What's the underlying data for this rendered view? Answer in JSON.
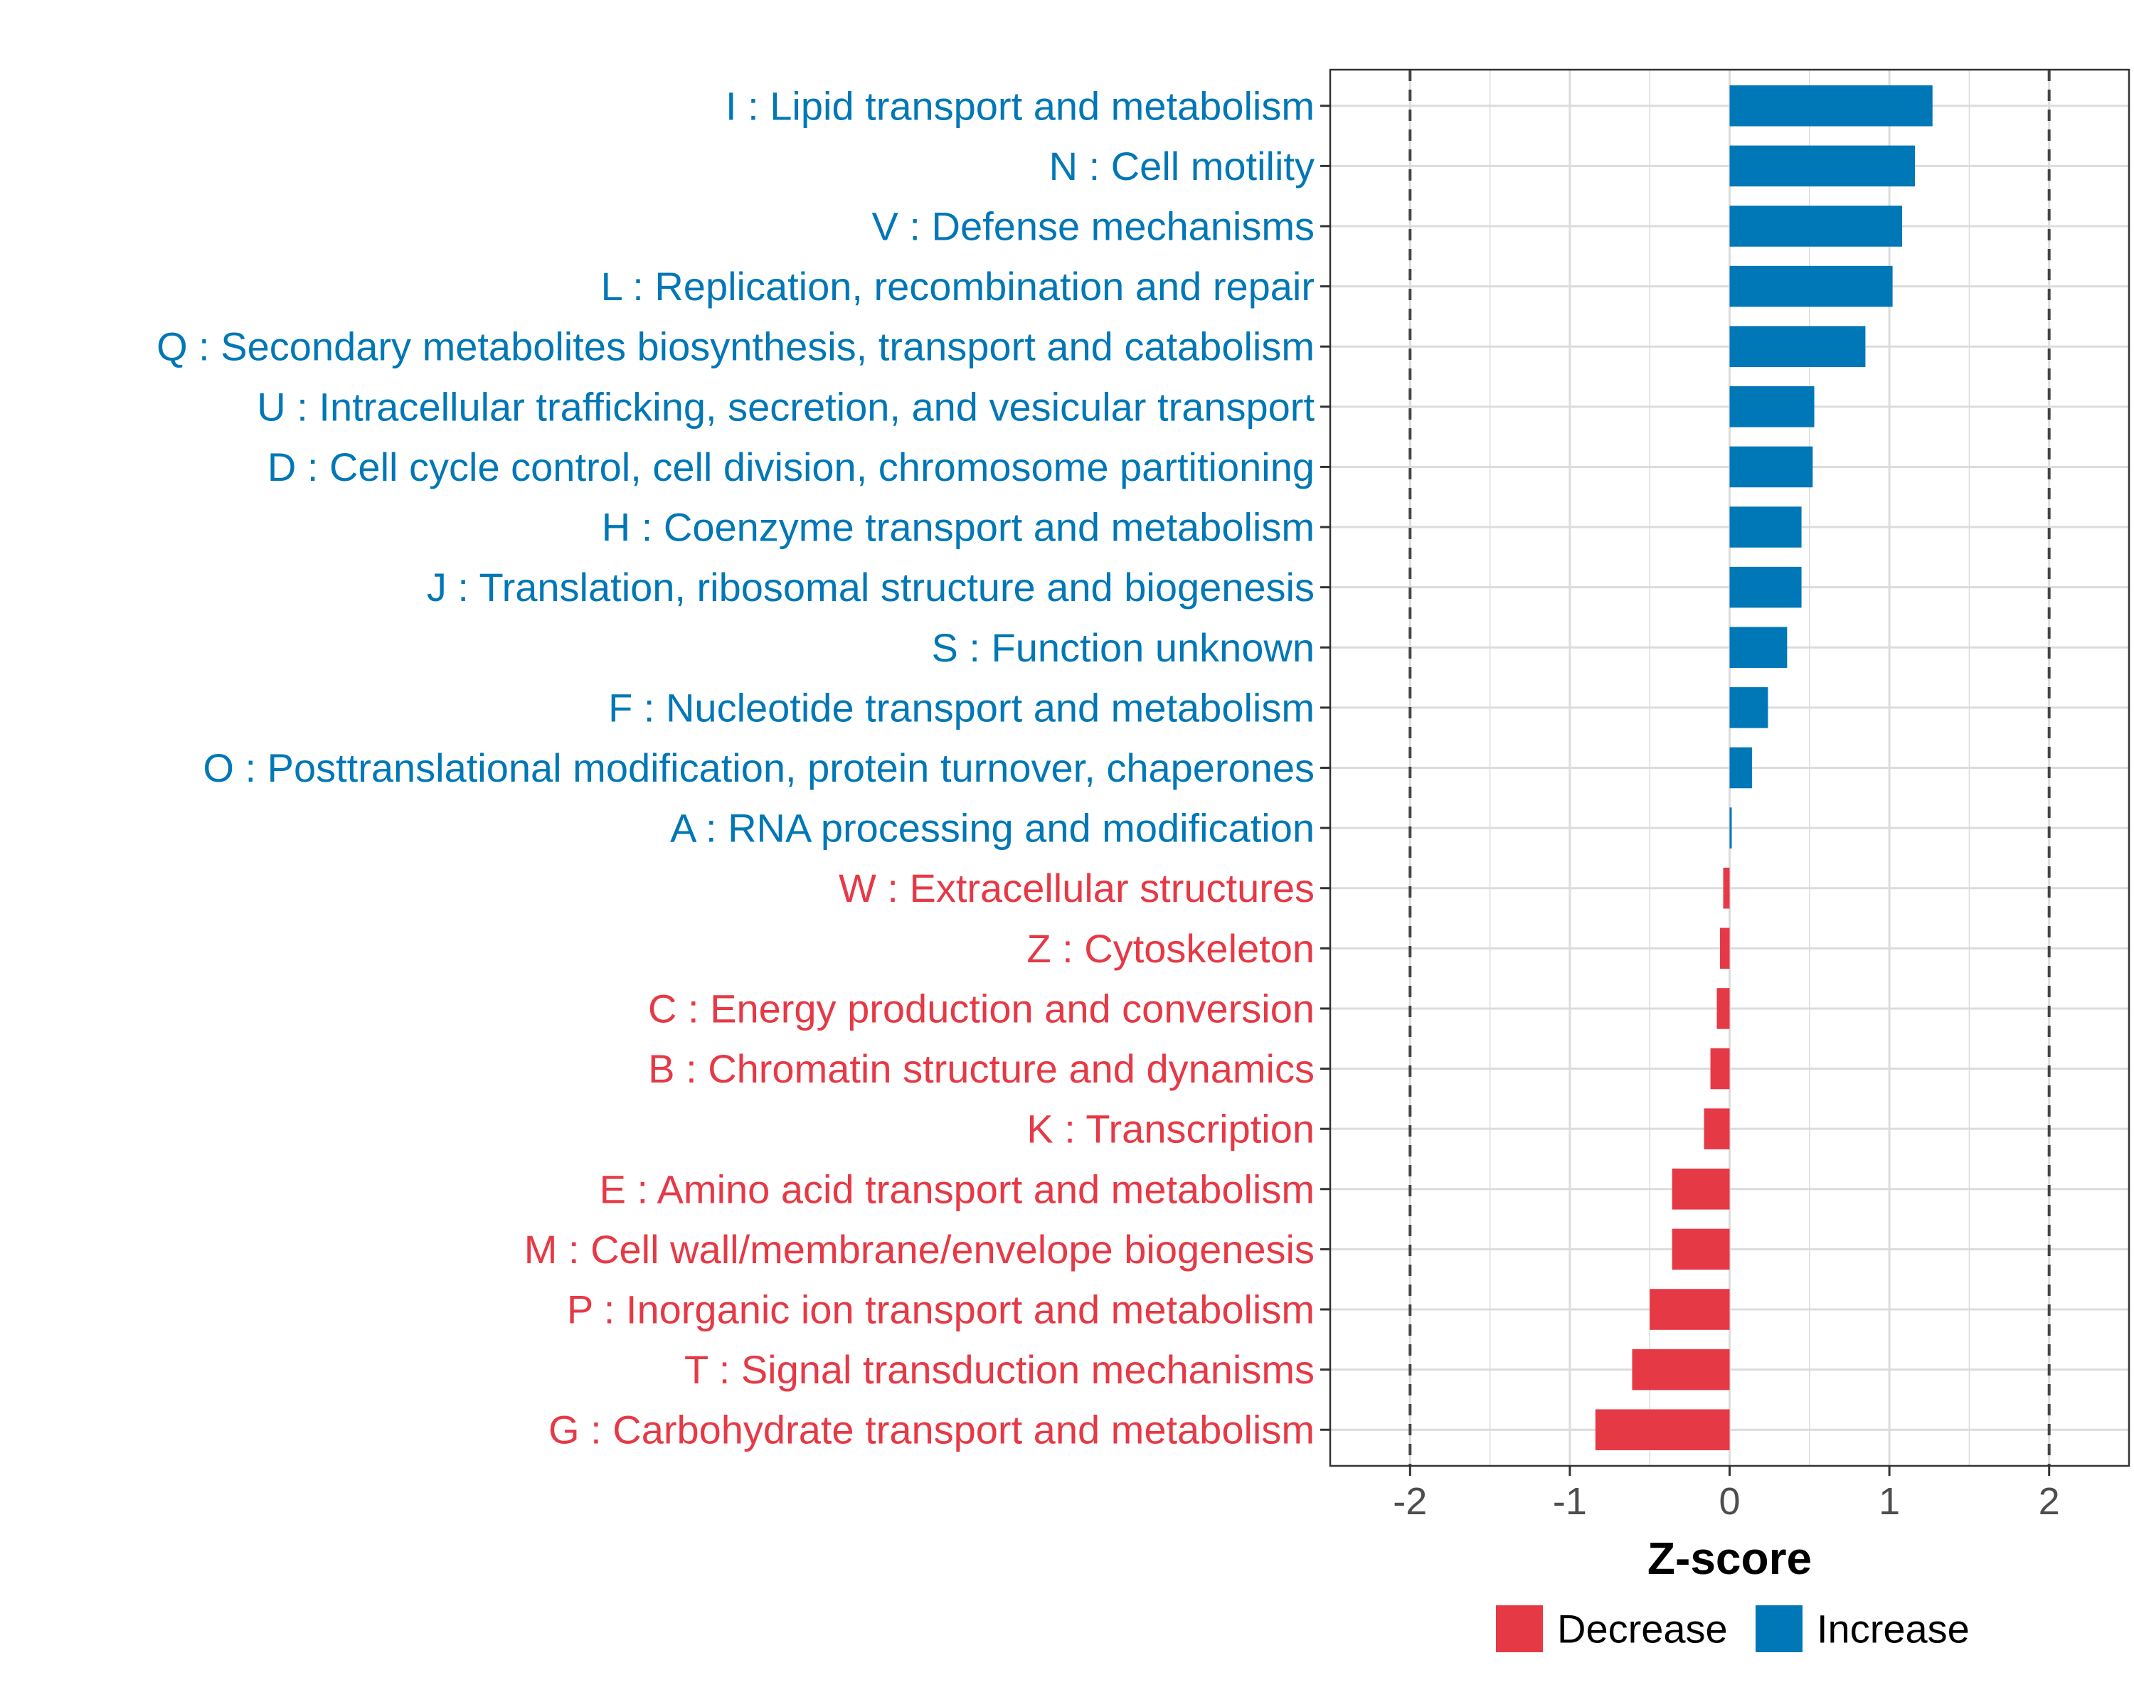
{
  "chart_data": {
    "type": "bar",
    "orientation": "horizontal",
    "title": "",
    "xlabel": "Z-score",
    "ylabel": "",
    "xlim": [
      -2.5,
      2.5
    ],
    "xticks": [
      -2,
      -1,
      0,
      1,
      2
    ],
    "xtick_labels": [
      "-2",
      "-1",
      "0",
      "1",
      "2"
    ],
    "reference_lines": [
      -2,
      2
    ],
    "grid": true,
    "categories": [
      "I : Lipid transport and metabolism",
      "N : Cell motility",
      "V : Defense mechanisms",
      "L : Replication, recombination and repair",
      "Q : Secondary metabolites biosynthesis, transport and catabolism",
      "U : Intracellular trafficking, secretion, and vesicular transport",
      "D : Cell cycle control, cell division, chromosome partitioning",
      "H : Coenzyme transport and metabolism",
      "J : Translation, ribosomal structure and biogenesis",
      "S : Function unknown",
      "F : Nucleotide transport and metabolism",
      "O : Posttranslational modification, protein turnover, chaperones",
      "A : RNA processing and modification",
      "W : Extracellular structures",
      "Z : Cytoskeleton",
      "C : Energy production and conversion",
      "B : Chromatin structure and dynamics",
      "K : Transcription",
      "E : Amino acid transport and metabolism",
      "M : Cell wall/membrane/envelope biogenesis",
      "P : Inorganic ion transport and metabolism",
      "T : Signal transduction mechanisms",
      "G : Carbohydrate transport and metabolism"
    ],
    "values": [
      1.27,
      1.16,
      1.08,
      1.02,
      0.85,
      0.53,
      0.52,
      0.45,
      0.45,
      0.36,
      0.24,
      0.14,
      0.01,
      -0.04,
      -0.06,
      -0.08,
      -0.12,
      -0.16,
      -0.36,
      -0.36,
      -0.5,
      -0.61,
      -0.84
    ],
    "legend": [
      {
        "label": "Decrease",
        "color": "#e63946"
      },
      {
        "label": "Increase",
        "color": "#0077b6"
      }
    ],
    "legend_position": "bottom"
  }
}
